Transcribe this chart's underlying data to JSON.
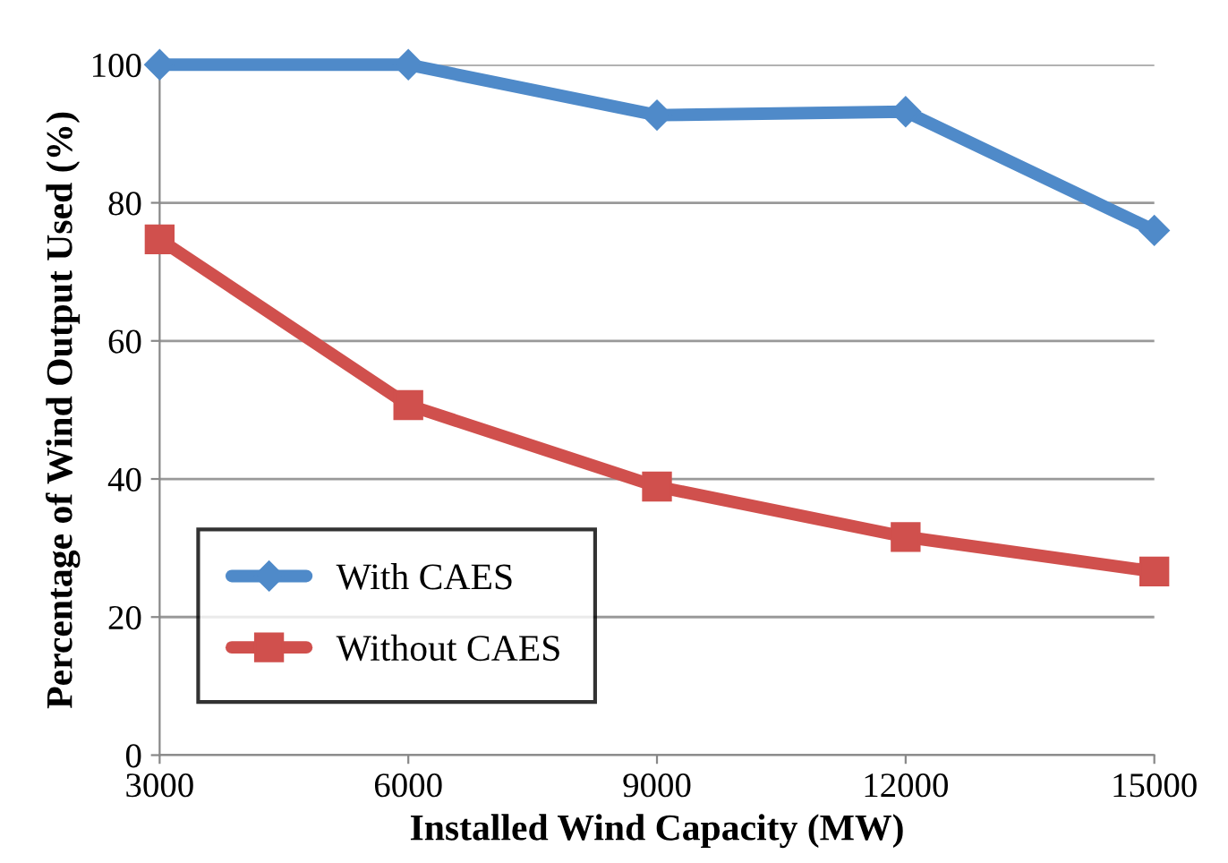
{
  "chart_data": {
    "type": "line",
    "xlabel": "Installed Wind Capacity (MW)",
    "ylabel": "Percentage of Wind Output Used (%)",
    "x": [
      3000,
      6000,
      9000,
      12000,
      15000
    ],
    "series": [
      {
        "name": "With CAES",
        "color": "#4f8ac9",
        "marker": "diamond",
        "values": [
          100,
          100,
          92.7,
          93.2,
          76.0
        ]
      },
      {
        "name": "Without CAES",
        "color": "#d0504d",
        "marker": "square",
        "values": [
          74.7,
          50.7,
          38.9,
          31.6,
          26.6
        ]
      }
    ],
    "xlim": [
      3000,
      15000
    ],
    "xticks": [
      3000,
      6000,
      9000,
      12000,
      15000
    ],
    "ylim": [
      0,
      100
    ],
    "yticks": [
      0,
      20,
      40,
      60,
      80,
      100
    ],
    "grid": "y",
    "legend": "bottom left",
    "line_style": "solid"
  }
}
